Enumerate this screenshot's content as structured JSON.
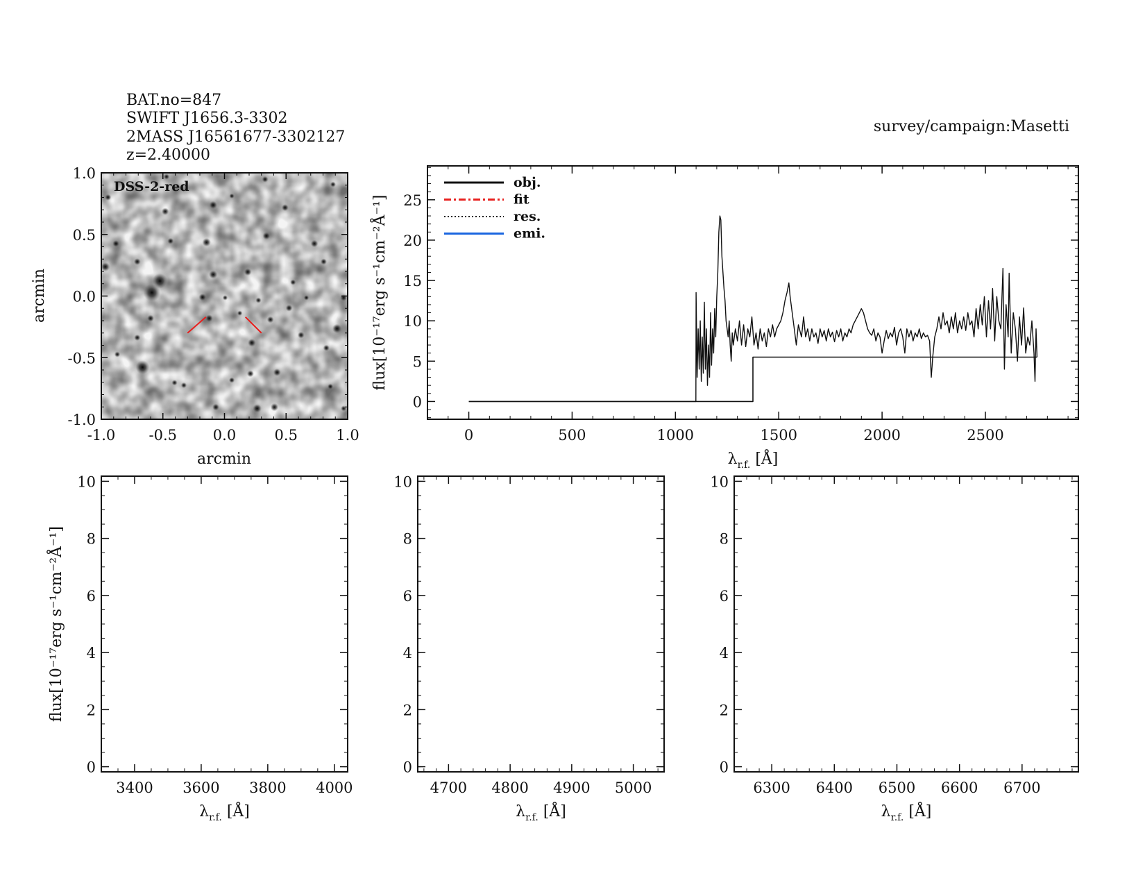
{
  "header": {
    "lines": [
      "BAT.no=847",
      "SWIFT J1656.3-3302",
      "2MASS J16561677-3302127",
      "z=2.40000"
    ],
    "survey": "survey/campaign:Masetti"
  },
  "image_panel": {
    "label": "DSS-2-red",
    "xlabel": "arcmin",
    "ylabel": "arcmin",
    "xlim": [
      -1.0,
      1.0
    ],
    "ylim": [
      -1.0,
      1.0
    ],
    "xticks": [
      "-1.0",
      "-0.5",
      "0.0",
      "0.5",
      "1.0"
    ],
    "yticks": [
      "-1.0",
      "-0.5",
      "0.0",
      "0.5",
      "1.0"
    ],
    "marker_color": "#e8201e"
  },
  "chart_data": [
    {
      "type": "line",
      "name": "spectrum",
      "xlabel": {
        "symbol": "λ",
        "sub": "r.f.",
        "unit": " [Å]"
      },
      "ylabel": "flux[10⁻¹⁷erg s⁻¹cm⁻²Å⁻¹]",
      "xlim": [
        -200,
        2950
      ],
      "ylim": [
        -2.2,
        29.2
      ],
      "xticks": [
        0,
        500,
        1000,
        1500,
        2000,
        2500
      ],
      "yticks": [
        0,
        5,
        10,
        15,
        20,
        25
      ],
      "legend": {
        "placement": "top-left",
        "entries": [
          {
            "label": "obj.",
            "color": "#111111",
            "style": "solid"
          },
          {
            "label": "fit",
            "color": "#e8201e",
            "style": "dashdot"
          },
          {
            "label": "res.",
            "color": "#111111",
            "style": "dotted"
          },
          {
            "label": "emi.",
            "color": "#1a66e0",
            "style": "solid"
          }
        ]
      },
      "series": [
        {
          "name": "obj.",
          "x": [
            0,
            1099,
            1100,
            1105,
            1110,
            1115,
            1120,
            1125,
            1130,
            1135,
            1140,
            1145,
            1150,
            1155,
            1160,
            1165,
            1170,
            1175,
            1180,
            1185,
            1190,
            1195,
            1200,
            1205,
            1210,
            1215,
            1220,
            1225,
            1230,
            1235,
            1240,
            1245,
            1250,
            1255,
            1260,
            1265,
            1270,
            1275,
            1280,
            1290,
            1300,
            1310,
            1320,
            1330,
            1340,
            1350,
            1360,
            1370,
            1380,
            1390,
            1400,
            1410,
            1420,
            1430,
            1440,
            1450,
            1460,
            1470,
            1480,
            1490,
            1500,
            1510,
            1520,
            1530,
            1540,
            1549,
            1555,
            1565,
            1575,
            1585,
            1595,
            1610,
            1620,
            1630,
            1640,
            1650,
            1660,
            1670,
            1680,
            1690,
            1700,
            1710,
            1720,
            1730,
            1740,
            1750,
            1760,
            1770,
            1780,
            1790,
            1800,
            1810,
            1820,
            1830,
            1840,
            1850,
            1860,
            1870,
            1880,
            1890,
            1900,
            1910,
            1920,
            1930,
            1940,
            1950,
            1960,
            1970,
            1980,
            1990,
            2000,
            2010,
            2020,
            2030,
            2040,
            2050,
            2060,
            2070,
            2080,
            2090,
            2100,
            2110,
            2120,
            2130,
            2140,
            2150,
            2160,
            2170,
            2180,
            2190,
            2200,
            2210,
            2220,
            2230,
            2238,
            2245,
            2255,
            2265,
            2275,
            2285,
            2295,
            2305,
            2315,
            2325,
            2335,
            2345,
            2355,
            2365,
            2375,
            2385,
            2395,
            2405,
            2415,
            2425,
            2435,
            2445,
            2455,
            2465,
            2475,
            2485,
            2495,
            2505,
            2515,
            2525,
            2535,
            2545,
            2555,
            2565,
            2575,
            2585,
            2592,
            2600,
            2610,
            2615,
            2625,
            2635,
            2645,
            2655,
            2665,
            2675,
            2685,
            2695,
            2705,
            2715,
            2725,
            2735,
            2740,
            2745,
            2750
          ],
          "y": [
            0,
            0,
            13.5,
            3,
            9,
            4,
            10,
            2.5,
            8,
            3.5,
            12.3,
            4,
            9,
            2,
            7,
            3,
            11,
            4.5,
            9,
            6,
            11.5,
            8,
            13,
            16,
            21,
            23,
            22.5,
            18,
            16,
            14,
            12.5,
            10,
            9,
            8,
            10,
            7,
            5,
            8.5,
            7,
            9,
            7.5,
            10,
            7,
            9.5,
            6.8,
            9,
            8,
            10.5,
            7,
            8.5,
            6.5,
            9,
            7.5,
            8.5,
            6.8,
            9,
            8,
            9.5,
            8,
            9,
            9.5,
            10,
            11,
            12.5,
            13.5,
            14.7,
            13,
            11,
            9,
            7,
            9.5,
            8,
            10.5,
            8,
            9,
            7.5,
            9,
            8,
            8.5,
            7.2,
            9,
            8,
            8.8,
            7.5,
            9,
            8,
            8.6,
            7.4,
            8.8,
            8,
            9,
            7.5,
            8.5,
            8,
            9,
            8.5,
            9.5,
            10,
            10.5,
            11,
            11.5,
            11,
            10,
            9,
            8.5,
            8.2,
            9,
            7.5,
            8.5,
            8,
            6,
            7.5,
            8.8,
            7.8,
            8.5,
            8,
            9.2,
            7,
            8.5,
            9,
            8,
            6,
            9,
            8,
            8.8,
            7.5,
            8.5,
            8,
            9,
            7.8,
            8.5,
            8,
            8.2,
            7.5,
            3,
            5.5,
            8,
            9,
            10.5,
            9,
            11,
            9.5,
            10,
            8.5,
            10.5,
            9,
            11,
            8.5,
            10,
            9,
            10.5,
            8.8,
            11,
            9.5,
            10,
            8,
            11.5,
            9,
            12,
            9.5,
            13,
            8,
            12.5,
            9,
            14,
            7.5,
            13,
            10,
            9,
            16.5,
            4,
            12,
            8,
            15.9,
            6,
            11,
            9,
            5,
            10.5,
            7,
            11.6,
            6,
            8,
            7,
            10,
            6,
            2.5,
            9,
            5.5
          ]
        },
        {
          "name": "continuum",
          "x": [
            0,
            1375,
            1375,
            2750
          ],
          "y": [
            0,
            0,
            5.5,
            5.5
          ]
        }
      ]
    },
    {
      "type": "line",
      "name": "hbeta-region-left",
      "xlabel": {
        "symbol": "λ",
        "sub": "r.f.",
        "unit": " [Å]"
      },
      "ylabel": "flux[10⁻¹⁷erg s⁻¹cm⁻²Å⁻¹]",
      "xlim": [
        3300,
        4040
      ],
      "ylim": [
        -0.18,
        10.18
      ],
      "xticks": [
        3400,
        3600,
        3800,
        4000
      ],
      "yticks": [
        0,
        2,
        4,
        6,
        8,
        10
      ],
      "series": []
    },
    {
      "type": "line",
      "name": "hbeta-region",
      "xlabel": {
        "symbol": "λ",
        "sub": "r.f.",
        "unit": " [Å]"
      },
      "ylabel": "",
      "xlim": [
        4650,
        5050
      ],
      "ylim": [
        -0.18,
        10.18
      ],
      "xticks": [
        4700,
        4800,
        4900,
        5000
      ],
      "yticks": [
        0,
        2,
        4,
        6,
        8,
        10
      ],
      "series": []
    },
    {
      "type": "line",
      "name": "halpha-region",
      "xlabel": {
        "symbol": "λ",
        "sub": "r.f.",
        "unit": " [Å]"
      },
      "ylabel": "",
      "xlim": [
        6240,
        6790
      ],
      "ylim": [
        -0.18,
        10.18
      ],
      "xticks": [
        6300,
        6400,
        6500,
        6600,
        6700
      ],
      "yticks": [
        0,
        2,
        4,
        6,
        8,
        10
      ],
      "series": []
    }
  ]
}
